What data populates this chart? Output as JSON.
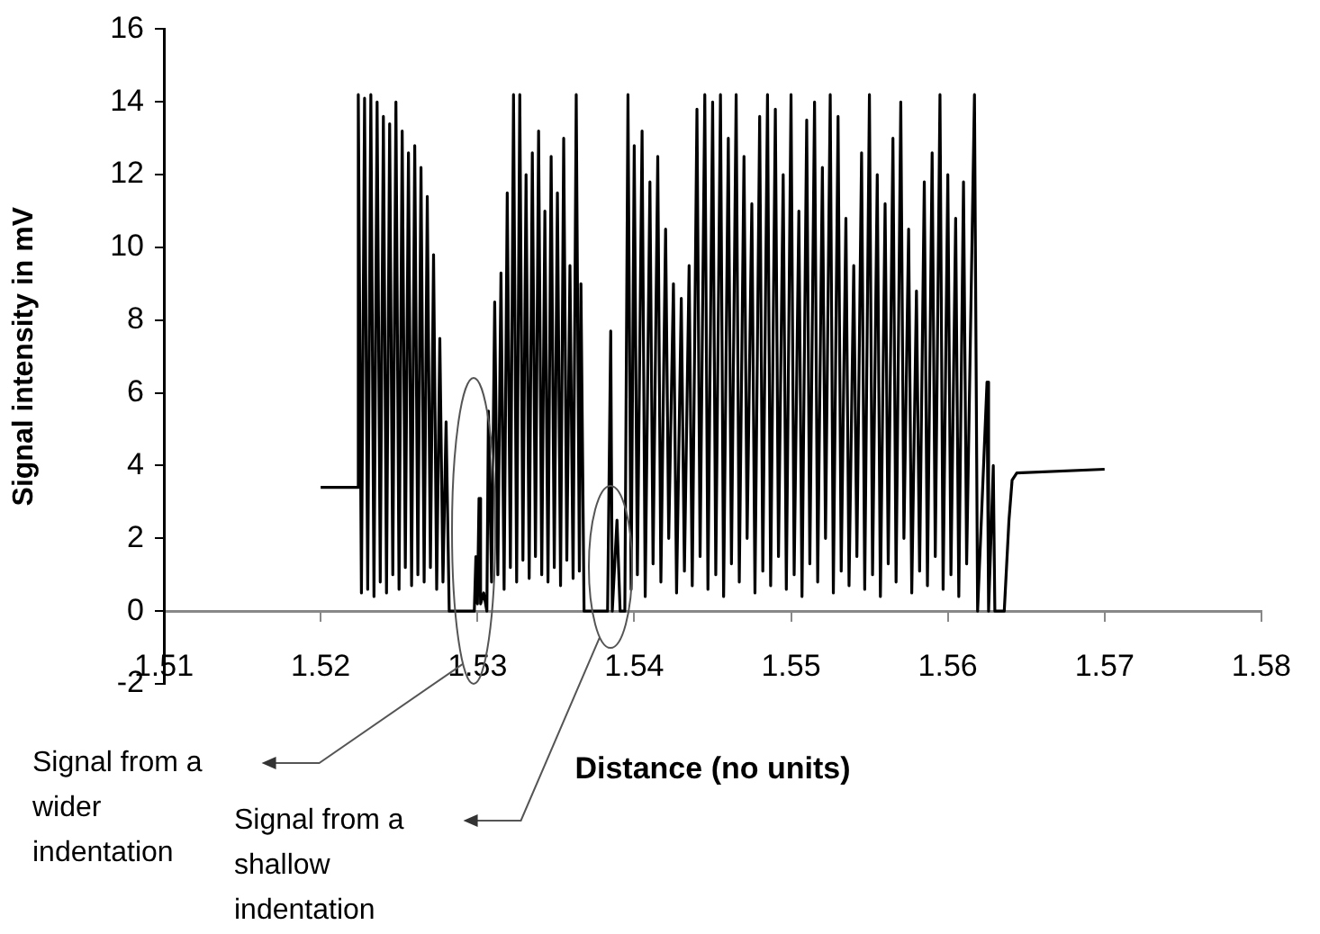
{
  "chart_data": {
    "type": "line",
    "xlabel": "Distance (no units)",
    "ylabel": "Signal intensity in mV",
    "xlim": [
      1.51,
      1.58
    ],
    "xticks": [
      1.51,
      1.52,
      1.53,
      1.54,
      1.55,
      1.56,
      1.57,
      1.58
    ],
    "ylim": [
      -2,
      16
    ],
    "yticks": [
      -2,
      0,
      2,
      4,
      6,
      8,
      10,
      12,
      14,
      16
    ],
    "series": [
      {
        "color": "#000000",
        "x": [
          1.52,
          1.5223,
          1.5224,
          1.5226,
          1.5228,
          1.523,
          1.5232,
          1.5234,
          1.5236,
          1.5238,
          1.524,
          1.5242,
          1.5244,
          1.5246,
          1.5248,
          1.525,
          1.5252,
          1.5254,
          1.5256,
          1.5258,
          1.526,
          1.5262,
          1.5264,
          1.5266,
          1.5268,
          1.527,
          1.5272,
          1.5274,
          1.5276,
          1.5278,
          1.528,
          1.5282,
          1.5298,
          1.5299,
          1.53,
          1.5301,
          1.5302,
          1.5304,
          1.5306,
          1.5307,
          1.5309,
          1.5311,
          1.5313,
          1.5315,
          1.5317,
          1.5319,
          1.5321,
          1.5323,
          1.5325,
          1.5327,
          1.5329,
          1.5331,
          1.5333,
          1.5335,
          1.5337,
          1.5339,
          1.5341,
          1.5343,
          1.5345,
          1.5347,
          1.5349,
          1.5351,
          1.5353,
          1.5355,
          1.5357,
          1.5359,
          1.5361,
          1.5363,
          1.5365,
          1.5366,
          1.5368,
          1.5383,
          1.5385,
          1.5386,
          1.5389,
          1.5391,
          1.5394,
          1.5396,
          1.5398,
          1.54,
          1.5402,
          1.5405,
          1.5407,
          1.541,
          1.5412,
          1.5415,
          1.5417,
          1.542,
          1.5422,
          1.5425,
          1.5427,
          1.543,
          1.5432,
          1.5435,
          1.5437,
          1.544,
          1.5442,
          1.5445,
          1.5447,
          1.545,
          1.5452,
          1.5455,
          1.5457,
          1.546,
          1.5462,
          1.5465,
          1.5467,
          1.547,
          1.5472,
          1.5475,
          1.5477,
          1.548,
          1.5482,
          1.5485,
          1.5487,
          1.549,
          1.5492,
          1.5495,
          1.5497,
          1.55,
          1.5502,
          1.5505,
          1.5507,
          1.551,
          1.5512,
          1.5515,
          1.5517,
          1.552,
          1.5522,
          1.5525,
          1.5527,
          1.553,
          1.5532,
          1.5535,
          1.5537,
          1.554,
          1.5542,
          1.5545,
          1.5547,
          1.555,
          1.5552,
          1.5555,
          1.5557,
          1.556,
          1.5562,
          1.5565,
          1.5567,
          1.557,
          1.5572,
          1.5575,
          1.5577,
          1.558,
          1.5582,
          1.5585,
          1.5587,
          1.559,
          1.5592,
          1.5595,
          1.5597,
          1.56,
          1.5602,
          1.5605,
          1.5607,
          1.561,
          1.5612,
          1.5617,
          1.5619,
          1.5625,
          1.5626,
          1.5629,
          1.563,
          1.5636,
          1.5639,
          1.5641,
          1.5644,
          1.57
        ],
        "values": [
          3.4,
          3.4,
          14.2,
          0.5,
          14.1,
          0.6,
          14.2,
          0.4,
          14.0,
          0.8,
          13.6,
          0.5,
          13.4,
          1.0,
          14.0,
          0.6,
          13.2,
          1.2,
          12.6,
          0.7,
          12.8,
          1.0,
          12.2,
          0.8,
          11.4,
          1.2,
          9.8,
          0.6,
          7.5,
          0.8,
          5.2,
          0,
          0,
          1.5,
          0.2,
          3.1,
          0.2,
          0.5,
          0,
          5.5,
          0.8,
          8.5,
          1.0,
          9.3,
          0.6,
          11.5,
          1.2,
          14.2,
          0.8,
          14.2,
          1.4,
          12.0,
          0.9,
          12.6,
          1.5,
          13.2,
          1.0,
          11.0,
          0.8,
          12.5,
          1.2,
          11.5,
          0.7,
          13.0,
          1.4,
          9.5,
          0.9,
          14.2,
          1.1,
          9.0,
          0,
          0,
          7.7,
          0,
          2.5,
          0,
          0,
          14.2,
          0.6,
          12.8,
          1.0,
          13.2,
          0.4,
          11.8,
          1.3,
          12.5,
          0.8,
          10.5,
          2.0,
          9.0,
          0.5,
          8.6,
          1.1,
          9.5,
          0.7,
          13.8,
          1.5,
          14.2,
          0.6,
          14.0,
          1.0,
          14.2,
          0.4,
          13.0,
          1.3,
          14.2,
          0.8,
          12.5,
          2.0,
          11.2,
          0.5,
          13.6,
          1.1,
          14.2,
          0.7,
          13.8,
          1.5,
          12.0,
          0.6,
          14.2,
          1.0,
          11.0,
          0.4,
          13.5,
          1.3,
          14.0,
          0.8,
          12.2,
          2.0,
          14.2,
          0.5,
          13.6,
          1.1,
          10.8,
          0.7,
          9.5,
          1.5,
          12.6,
          0.6,
          14.2,
          1.0,
          12.0,
          0.4,
          11.2,
          1.3,
          13.0,
          0.8,
          14.0,
          2.0,
          10.5,
          0.5,
          8.8,
          1.1,
          11.8,
          0.7,
          12.6,
          1.5,
          14.2,
          0.6,
          12.0,
          1.0,
          10.8,
          0.4,
          11.8,
          1.3,
          14.2,
          0,
          6.3,
          0,
          4.0,
          0,
          0,
          2.5,
          3.6,
          3.8,
          3.9
        ]
      }
    ],
    "annotations": [
      "Signal from a wider indentation",
      "Signal from a shallow indentation"
    ]
  }
}
